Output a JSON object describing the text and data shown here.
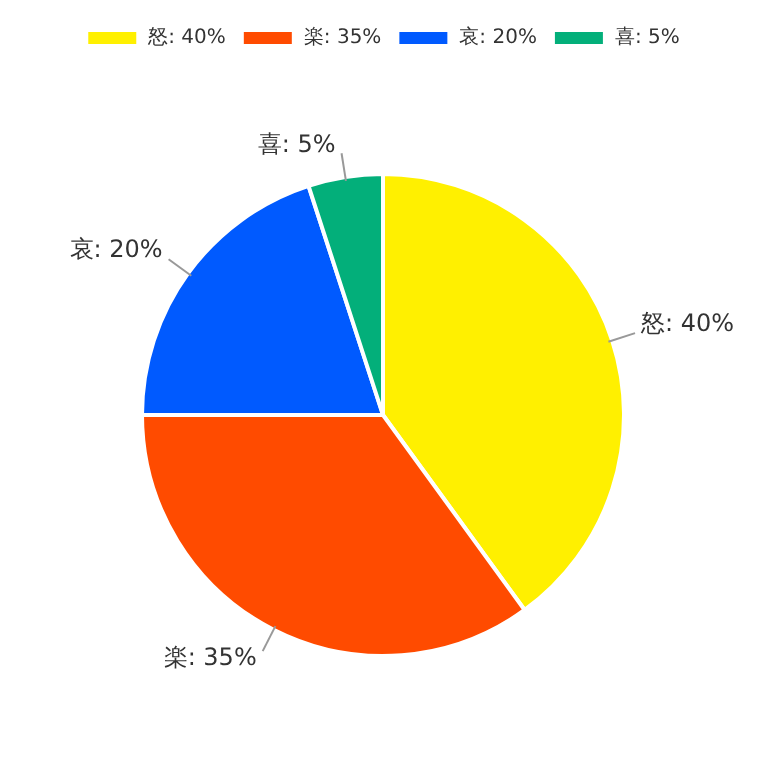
{
  "chart_data": {
    "type": "pie",
    "categories": [
      "怒",
      "楽",
      "哀",
      "喜"
    ],
    "values": [
      40,
      35,
      20,
      5
    ],
    "value_labels": [
      "40%",
      "35%",
      "20%",
      "5%"
    ],
    "colors": [
      "#fff000",
      "#ff4b00",
      "#005aff",
      "#03af7a"
    ],
    "legend": "top"
  }
}
